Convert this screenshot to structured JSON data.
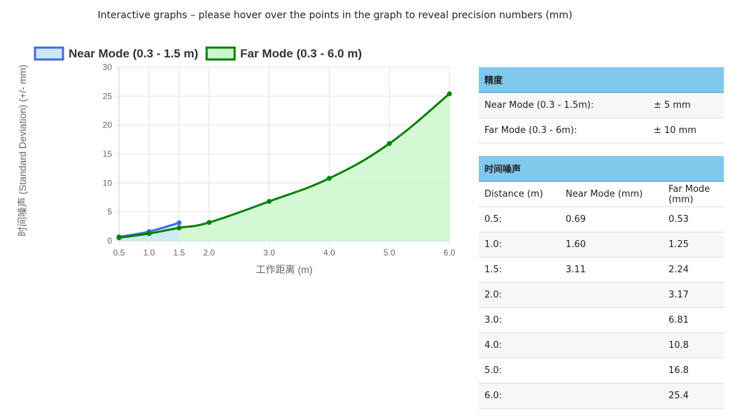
{
  "header": {
    "title": "Interactive graphs – please hover over the points in the graph to reveal precision numbers (mm)"
  },
  "chart_data": {
    "type": "line",
    "y_label": "时间噪声 (Standard Deviation) (+/- mm)",
    "x_label": "工作距离 (m)",
    "xlim": [
      0.5,
      6
    ],
    "ylim": [
      0,
      30
    ],
    "xticks": [
      0.5,
      {
        "value": 1,
        "label": "1.0"
      },
      1.5,
      {
        "value": 2,
        "label": "2.0"
      },
      {
        "value": 3,
        "label": "3.0"
      },
      {
        "value": 4,
        "label": "4.0"
      },
      {
        "value": 5,
        "label": "5.0"
      },
      {
        "value": 6,
        "label": "6.0"
      }
    ],
    "yticks": [
      0,
      5,
      10,
      15,
      20,
      25,
      30
    ],
    "grid": true,
    "legend": "top-left",
    "series": [
      {
        "name": "Near Mode (0.3 - 1.5 m)",
        "color": "#4169e1",
        "fill": "#cce9fa",
        "x": [
          0.5,
          1,
          1.5
        ],
        "values": [
          0.69,
          1.6,
          3.11
        ]
      },
      {
        "name": "Far Mode (0.3 - 6.0 m)",
        "color": "#008000",
        "fill": "#ccf7cc",
        "x": [
          0.5,
          1,
          1.5,
          2,
          3,
          4,
          5,
          6
        ],
        "values": [
          0.53,
          1.25,
          2.24,
          3.17,
          6.81,
          10.8,
          16.8,
          25.4
        ]
      }
    ]
  },
  "precision_table": {
    "title": "精度",
    "rows": [
      [
        "Near Mode (0.3 - 1.5m):",
        "± 5 mm"
      ],
      [
        "Far Mode (0.3 - 6m):",
        "± 10 mm"
      ]
    ]
  },
  "noise_table": {
    "title": "时间噪声",
    "columns": [
      "Distance (m)",
      "Near Mode (mm)",
      "Far Mode (mm)"
    ],
    "rows": [
      [
        "0.5:",
        "0.69",
        "0.53"
      ],
      [
        "1.0:",
        "1.60",
        "1.25"
      ],
      [
        "1.5:",
        "3.11",
        "2.24"
      ],
      [
        "2.0:",
        null,
        "3.17"
      ],
      [
        "3.0:",
        null,
        "6.81"
      ],
      [
        "4.0:",
        null,
        "10.8"
      ],
      [
        "5.0:",
        null,
        "16.8"
      ],
      [
        "6.0:",
        null,
        "25.4"
      ]
    ]
  }
}
